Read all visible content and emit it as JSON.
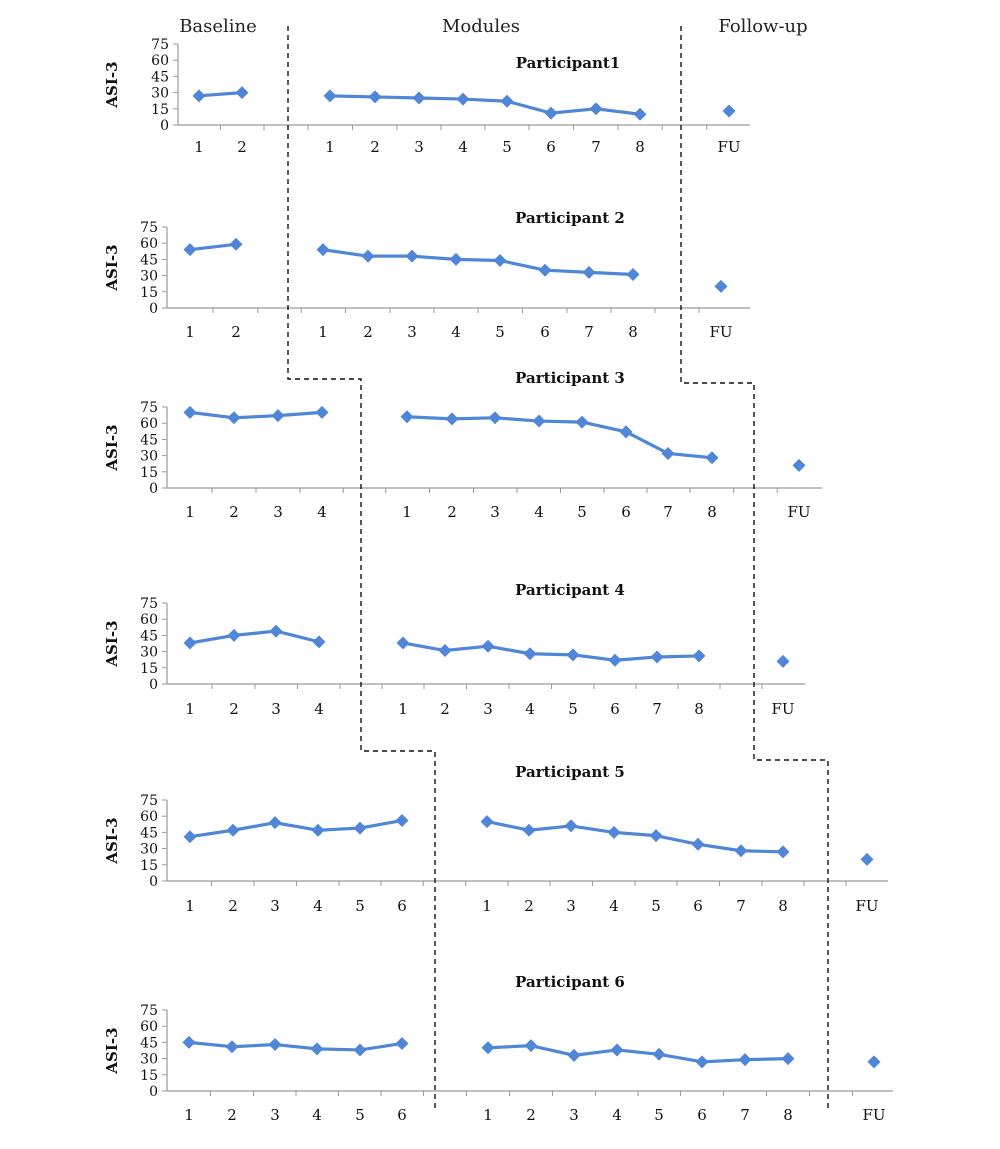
{
  "phase_labels": {
    "baseline": "Baseline",
    "modules": "Modules",
    "followup": "Follow-up"
  },
  "chart_data": {
    "type": "line",
    "ylabel": "ASI-3",
    "ylim": [
      0,
      75
    ],
    "yticks": [
      0,
      15,
      30,
      45,
      60,
      75
    ],
    "grid": false,
    "color": "#4f86d8",
    "followup_tick": "FU",
    "panels": [
      {
        "title": "Participant1",
        "baseline": [
          27,
          30
        ],
        "modules": [
          27,
          26,
          25,
          24,
          22,
          11,
          15,
          10
        ],
        "followup": 13
      },
      {
        "title": "Participant 2",
        "baseline": [
          54,
          59
        ],
        "modules": [
          54,
          48,
          48,
          45,
          44,
          35,
          33,
          31
        ],
        "followup": 20
      },
      {
        "title": "Participant 3",
        "baseline": [
          70,
          65,
          67,
          70
        ],
        "modules": [
          66,
          64,
          65,
          62,
          61,
          52,
          32,
          28
        ],
        "followup": 21
      },
      {
        "title": "Participant 4",
        "baseline": [
          38,
          45,
          49,
          39
        ],
        "modules": [
          38,
          31,
          35,
          28,
          27,
          22,
          25,
          26
        ],
        "followup": 21
      },
      {
        "title": "Participant 5",
        "baseline": [
          41,
          47,
          54,
          47,
          49,
          56
        ],
        "modules": [
          55,
          47,
          51,
          45,
          42,
          34,
          28,
          27
        ],
        "followup": 20
      },
      {
        "title": "Participant 6",
        "baseline": [
          45,
          41,
          43,
          39,
          38,
          44
        ],
        "modules": [
          40,
          42,
          33,
          38,
          34,
          27,
          29,
          30
        ],
        "followup": 27
      }
    ]
  }
}
